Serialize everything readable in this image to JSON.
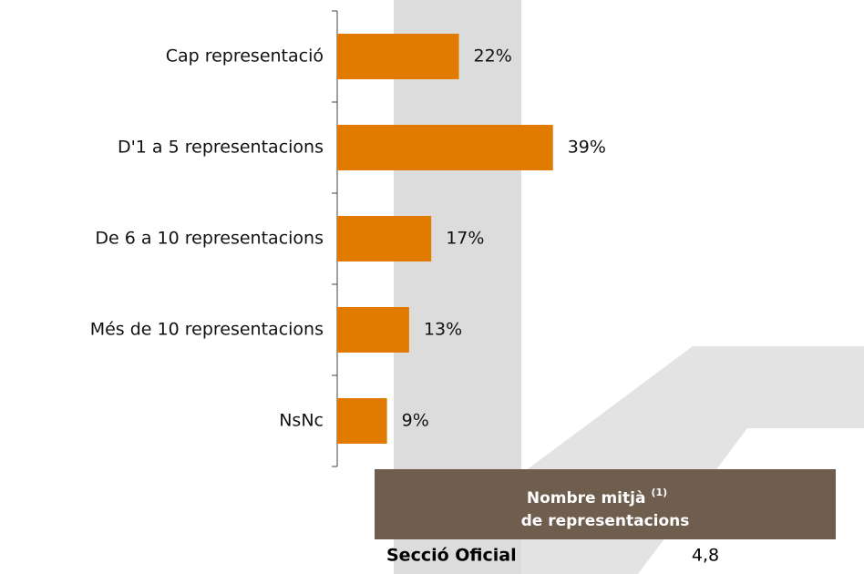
{
  "chart_data": {
    "type": "bar",
    "orientation": "horizontal",
    "categories": [
      "Cap representació",
      "D'1 a 5 representacions",
      "De 6 a 10 representacions",
      "Més de 10 representacions",
      "NsNc"
    ],
    "values": [
      22,
      39,
      17,
      13,
      9
    ],
    "value_labels": [
      "22%",
      "39%",
      "17%",
      "13%",
      "9%"
    ],
    "color": "#e07b00"
  },
  "table": {
    "header": [
      "Nombre mitjà",
      "(1)",
      "de representacions"
    ],
    "rows": [
      [
        "Secció Oficial",
        "4,8"
      ]
    ]
  }
}
